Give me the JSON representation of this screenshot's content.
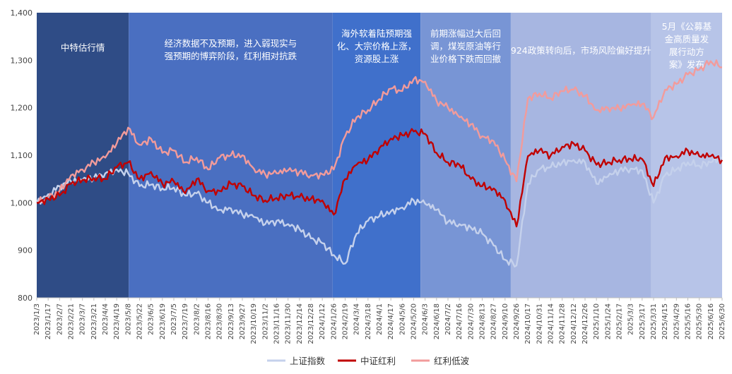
{
  "chart_data": {
    "type": "line",
    "title": "",
    "xlabel": "",
    "ylabel": "",
    "ylim": [
      800,
      1400
    ],
    "y_ticks": [
      "800",
      "900",
      "1,000",
      "1,100",
      "1,200",
      "1,300",
      "1,400"
    ],
    "x_labels": [
      "2023/1/3",
      "2023/1/17",
      "2023/2/7",
      "2023/2/21",
      "2023/3/7",
      "2023/3/21",
      "2023/4/4",
      "2023/4/19",
      "2023/5/8",
      "2023/5/22",
      "2023/6/5",
      "2023/6/19",
      "2023/7/5",
      "2023/7/19",
      "2023/8/2",
      "2023/8/16",
      "2023/8/30",
      "2023/9/13",
      "2023/9/27",
      "2023/10/19",
      "2023/11/2",
      "2023/11/16",
      "2023/11/30",
      "2023/12/14",
      "2023/12/28",
      "2024/1/12",
      "2024/1/26",
      "2024/2/19",
      "2024/3/4",
      "2024/3/18",
      "2024/4/1",
      "2024/4/17",
      "2024/5/6",
      "2024/5/20",
      "2024/6/3",
      "2024/6/18",
      "2024/7/2",
      "2024/7/16",
      "2024/7/30",
      "2024/8/13",
      "2024/8/27",
      "2024/9/10",
      "2024/9/26",
      "2024/10/17",
      "2024/10/31",
      "2024/11/14",
      "2024/11/28",
      "2024/12/12",
      "2024/12/26",
      "2025/1/10",
      "2025/1/24",
      "2025/2/17",
      "2025/3/3",
      "2025/3/17",
      "2025/3/31",
      "2025/4/15",
      "2025/4/29",
      "2025/5/16",
      "2025/5/30",
      "2025/6/16",
      "2025/6/30"
    ],
    "series": [
      {
        "name": "上证指数",
        "color": "#c5d1ec",
        "values": [
          1000,
          1018,
          1035,
          1045,
          1048,
          1052,
          1062,
          1070,
          1062,
          1035,
          1038,
          1030,
          1032,
          1015,
          1020,
          1000,
          985,
          988,
          975,
          970,
          955,
          962,
          955,
          945,
          925,
          915,
          890,
          872,
          935,
          962,
          972,
          982,
          990,
          1005,
          998,
          985,
          960,
          955,
          948,
          935,
          910,
          880,
          868,
          1040,
          1070,
          1075,
          1085,
          1090,
          1085,
          1040,
          1055,
          1068,
          1072,
          1068,
          1000,
          1058,
          1070,
          1085,
          1078,
          1085,
          1095
        ]
      },
      {
        "name": "中证红利",
        "color": "#c00000",
        "values": [
          1000,
          1008,
          1015,
          1040,
          1048,
          1052,
          1050,
          1075,
          1085,
          1050,
          1065,
          1040,
          1045,
          1020,
          1050,
          1025,
          1025,
          1040,
          1035,
          1015,
          1005,
          1010,
          1015,
          1012,
          1008,
          1005,
          975,
          1050,
          1080,
          1090,
          1115,
          1135,
          1142,
          1150,
          1145,
          1105,
          1085,
          1080,
          1050,
          1035,
          1030,
          1005,
          950,
          1098,
          1110,
          1100,
          1118,
          1125,
          1110,
          1080,
          1085,
          1090,
          1092,
          1092,
          1035,
          1095,
          1098,
          1110,
          1098,
          1098,
          1090
        ]
      },
      {
        "name": "红利低波",
        "color": "#f29b9b",
        "values": [
          1000,
          1010,
          1025,
          1058,
          1070,
          1085,
          1095,
          1125,
          1158,
          1122,
          1135,
          1105,
          1110,
          1085,
          1095,
          1070,
          1095,
          1100,
          1100,
          1072,
          1060,
          1062,
          1068,
          1065,
          1058,
          1060,
          1070,
          1140,
          1180,
          1195,
          1218,
          1240,
          1235,
          1260,
          1255,
          1215,
          1200,
          1180,
          1165,
          1140,
          1130,
          1090,
          1045,
          1220,
          1230,
          1220,
          1235,
          1238,
          1225,
          1195,
          1200,
          1198,
          1205,
          1208,
          1180,
          1238,
          1250,
          1270,
          1280,
          1298,
          1285
        ]
      }
    ],
    "annotations": [
      {
        "text_lines": [
          "中特估行情"
        ],
        "color": "#2f4c86"
      },
      {
        "text_lines": [
          "经济数据不及预期，进入弱现实与",
          "强预期的博弈阶段，红利相对抗跌"
        ],
        "color": "#4a6fc1"
      },
      {
        "text_lines": [
          "海外软着陆预期强",
          "化、大宗价格上涨，",
          "资源股上涨"
        ],
        "color": "#4070cb"
      },
      {
        "text_lines": [
          "前期涨幅过大后回",
          "调，煤炭原油等行",
          "业价格下跌而回撤"
        ],
        "color": "#7895d5"
      },
      {
        "text_lines": [
          "924政策转向后，市场风险偏好提升"
        ],
        "color": "#a7b6e1"
      },
      {
        "text_lines": [
          "5月《公募基",
          "金高质量发",
          "展行动方",
          "案》发布"
        ],
        "color": "#b7c4e8"
      }
    ]
  }
}
